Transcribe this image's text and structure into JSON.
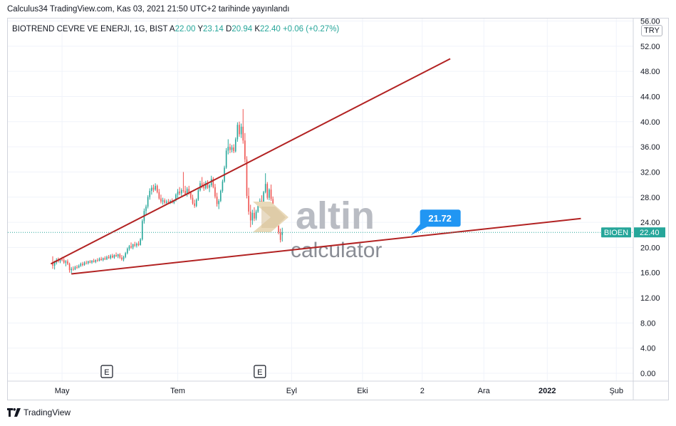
{
  "publish_line": "Calculus34 TradingView.com, Kas 03, 2021 21:50 UTC+2 tarihinde yayınlandı",
  "legend": {
    "symbol": "BIOTREND CEVRE VE ENERJI, 1G, BIST",
    "open_label": "A",
    "open": "22.00",
    "high_label": "Y",
    "high": "23.14",
    "low_label": "D",
    "low": "20.94",
    "close_label": "K",
    "close": "22.40",
    "change": "+0.06 (+0.27%)"
  },
  "currency": "TRY",
  "footer_brand": "TradingView",
  "watermark": {
    "word": "altin",
    "tagline": "calculator"
  },
  "colors": {
    "up": "#26a69a",
    "down": "#ef5350",
    "trendline": "#b22222",
    "label": "#2196f3",
    "price_tag": "#26a69a"
  },
  "chart_data": {
    "type": "candlestick",
    "y_axis": {
      "min": 0,
      "max": 56,
      "ticks": [
        "0.00",
        "4.00",
        "8.00",
        "12.00",
        "16.00",
        "20.00",
        "24.00",
        "28.00",
        "32.00",
        "36.00",
        "40.00",
        "44.00",
        "48.00",
        "52.00",
        "56.00"
      ]
    },
    "x_axis": {
      "ticks": [
        "May",
        "Tem",
        "Eyl",
        "Eki",
        "2",
        "Ara",
        "2022",
        "Şub"
      ],
      "tick_index": [
        5,
        67,
        128,
        166,
        198,
        231,
        265,
        302
      ]
    },
    "earnings_markers": [
      {
        "label": "E",
        "index": 29
      },
      {
        "label": "E",
        "index": 111
      }
    ],
    "price_line": {
      "symbol": "BIOEN",
      "value": 22.4
    },
    "callout": {
      "value": "21.72",
      "index": 193
    },
    "trendlines": [
      {
        "from": {
          "index": -1,
          "price": 17.4
        },
        "to": {
          "index": 213,
          "price": 50.0
        }
      },
      {
        "from": {
          "index": 10,
          "price": 15.8
        },
        "to": {
          "index": 283,
          "price": 24.6
        }
      }
    ],
    "series": [
      {
        "o": 17.6,
        "h": 18.6,
        "l": 16.6,
        "c": 17.1
      },
      {
        "o": 17.1,
        "h": 17.9,
        "l": 16.5,
        "c": 17.6
      },
      {
        "o": 17.6,
        "h": 18.3,
        "l": 17.3,
        "c": 18.0
      },
      {
        "o": 18.0,
        "h": 18.4,
        "l": 17.6,
        "c": 17.8
      },
      {
        "o": 17.8,
        "h": 18.2,
        "l": 17.5,
        "c": 18.1
      },
      {
        "o": 18.1,
        "h": 18.5,
        "l": 17.8,
        "c": 18.0
      },
      {
        "o": 18.0,
        "h": 18.3,
        "l": 17.4,
        "c": 17.6
      },
      {
        "o": 17.6,
        "h": 18.0,
        "l": 17.0,
        "c": 17.8
      },
      {
        "o": 17.8,
        "h": 18.1,
        "l": 17.2,
        "c": 17.4
      },
      {
        "o": 17.4,
        "h": 17.6,
        "l": 16.0,
        "c": 16.4
      },
      {
        "o": 16.4,
        "h": 16.9,
        "l": 15.9,
        "c": 16.6
      },
      {
        "o": 16.6,
        "h": 17.0,
        "l": 16.3,
        "c": 16.5
      },
      {
        "o": 16.5,
        "h": 17.1,
        "l": 16.4,
        "c": 16.9
      },
      {
        "o": 16.9,
        "h": 17.2,
        "l": 16.6,
        "c": 16.8
      },
      {
        "o": 16.8,
        "h": 17.3,
        "l": 16.7,
        "c": 17.1
      },
      {
        "o": 17.1,
        "h": 17.6,
        "l": 16.9,
        "c": 17.4
      },
      {
        "o": 17.4,
        "h": 17.7,
        "l": 17.0,
        "c": 17.2
      },
      {
        "o": 17.2,
        "h": 17.8,
        "l": 17.1,
        "c": 17.6
      },
      {
        "o": 17.6,
        "h": 17.9,
        "l": 17.3,
        "c": 17.5
      },
      {
        "o": 17.5,
        "h": 17.9,
        "l": 17.3,
        "c": 17.8
      },
      {
        "o": 17.8,
        "h": 18.0,
        "l": 17.5,
        "c": 17.6
      },
      {
        "o": 17.6,
        "h": 18.0,
        "l": 17.4,
        "c": 17.9
      },
      {
        "o": 17.9,
        "h": 18.2,
        "l": 17.6,
        "c": 17.7
      },
      {
        "o": 17.7,
        "h": 18.1,
        "l": 17.5,
        "c": 18.0
      },
      {
        "o": 18.0,
        "h": 18.3,
        "l": 17.7,
        "c": 17.9
      },
      {
        "o": 17.9,
        "h": 18.4,
        "l": 17.8,
        "c": 18.2
      },
      {
        "o": 18.2,
        "h": 18.5,
        "l": 17.9,
        "c": 18.0
      },
      {
        "o": 18.0,
        "h": 18.4,
        "l": 17.8,
        "c": 18.3
      },
      {
        "o": 18.3,
        "h": 18.6,
        "l": 18.0,
        "c": 18.1
      },
      {
        "o": 18.1,
        "h": 18.7,
        "l": 18.0,
        "c": 18.5
      },
      {
        "o": 18.5,
        "h": 18.8,
        "l": 18.2,
        "c": 18.3
      },
      {
        "o": 18.3,
        "h": 18.9,
        "l": 18.1,
        "c": 18.7
      },
      {
        "o": 18.7,
        "h": 19.0,
        "l": 18.3,
        "c": 18.4
      },
      {
        "o": 18.4,
        "h": 18.9,
        "l": 18.2,
        "c": 18.8
      },
      {
        "o": 18.8,
        "h": 19.2,
        "l": 18.5,
        "c": 18.6
      },
      {
        "o": 18.6,
        "h": 19.0,
        "l": 18.3,
        "c": 18.9
      },
      {
        "o": 18.9,
        "h": 19.1,
        "l": 18.2,
        "c": 18.4
      },
      {
        "o": 18.4,
        "h": 18.8,
        "l": 17.9,
        "c": 18.1
      },
      {
        "o": 18.1,
        "h": 18.7,
        "l": 17.8,
        "c": 18.5
      },
      {
        "o": 18.5,
        "h": 19.3,
        "l": 18.3,
        "c": 19.1
      },
      {
        "o": 19.1,
        "h": 20.0,
        "l": 18.9,
        "c": 19.8
      },
      {
        "o": 19.8,
        "h": 20.4,
        "l": 19.5,
        "c": 20.2
      },
      {
        "o": 20.2,
        "h": 20.8,
        "l": 19.8,
        "c": 20.0
      },
      {
        "o": 20.0,
        "h": 20.6,
        "l": 19.7,
        "c": 20.5
      },
      {
        "o": 20.5,
        "h": 20.9,
        "l": 20.1,
        "c": 20.3
      },
      {
        "o": 20.3,
        "h": 20.8,
        "l": 20.0,
        "c": 20.6
      },
      {
        "o": 20.6,
        "h": 21.0,
        "l": 20.2,
        "c": 20.4
      },
      {
        "o": 20.4,
        "h": 21.5,
        "l": 20.3,
        "c": 21.3
      },
      {
        "o": 21.3,
        "h": 24.5,
        "l": 21.1,
        "c": 24.2
      },
      {
        "o": 24.2,
        "h": 26.2,
        "l": 23.8,
        "c": 25.8
      },
      {
        "o": 25.8,
        "h": 26.8,
        "l": 25.2,
        "c": 26.5
      },
      {
        "o": 26.5,
        "h": 28.3,
        "l": 26.2,
        "c": 28.0
      },
      {
        "o": 28.0,
        "h": 29.4,
        "l": 27.6,
        "c": 29.0
      },
      {
        "o": 29.0,
        "h": 29.9,
        "l": 28.4,
        "c": 29.5
      },
      {
        "o": 29.5,
        "h": 30.0,
        "l": 28.8,
        "c": 29.2
      },
      {
        "o": 29.2,
        "h": 30.2,
        "l": 29.0,
        "c": 29.8
      },
      {
        "o": 29.8,
        "h": 30.0,
        "l": 28.6,
        "c": 28.8
      },
      {
        "o": 28.8,
        "h": 29.3,
        "l": 27.6,
        "c": 27.8
      },
      {
        "o": 27.8,
        "h": 28.4,
        "l": 27.0,
        "c": 27.3
      },
      {
        "o": 27.3,
        "h": 27.9,
        "l": 26.8,
        "c": 27.5
      },
      {
        "o": 27.5,
        "h": 27.8,
        "l": 26.9,
        "c": 27.1
      },
      {
        "o": 27.1,
        "h": 27.6,
        "l": 26.8,
        "c": 27.3
      },
      {
        "o": 27.3,
        "h": 27.7,
        "l": 27.0,
        "c": 27.2
      },
      {
        "o": 27.2,
        "h": 27.6,
        "l": 26.9,
        "c": 27.4
      },
      {
        "o": 27.4,
        "h": 27.8,
        "l": 27.0,
        "c": 27.1
      },
      {
        "o": 27.1,
        "h": 27.6,
        "l": 26.9,
        "c": 27.5
      },
      {
        "o": 27.5,
        "h": 28.6,
        "l": 27.3,
        "c": 28.4
      },
      {
        "o": 28.4,
        "h": 29.3,
        "l": 27.8,
        "c": 28.9
      },
      {
        "o": 28.9,
        "h": 29.6,
        "l": 28.3,
        "c": 28.6
      },
      {
        "o": 28.6,
        "h": 29.4,
        "l": 28.2,
        "c": 29.1
      },
      {
        "o": 29.1,
        "h": 32.0,
        "l": 28.7,
        "c": 29.0
      },
      {
        "o": 29.0,
        "h": 29.8,
        "l": 28.2,
        "c": 28.5
      },
      {
        "o": 28.5,
        "h": 29.6,
        "l": 28.1,
        "c": 29.3
      },
      {
        "o": 29.3,
        "h": 29.8,
        "l": 28.4,
        "c": 28.7
      },
      {
        "o": 28.7,
        "h": 29.0,
        "l": 27.6,
        "c": 27.9
      },
      {
        "o": 27.9,
        "h": 28.4,
        "l": 26.8,
        "c": 27.0
      },
      {
        "o": 27.0,
        "h": 27.6,
        "l": 26.3,
        "c": 26.6
      },
      {
        "o": 26.6,
        "h": 27.8,
        "l": 26.4,
        "c": 27.6
      },
      {
        "o": 27.6,
        "h": 29.4,
        "l": 27.4,
        "c": 29.1
      },
      {
        "o": 29.1,
        "h": 30.6,
        "l": 28.9,
        "c": 30.2
      },
      {
        "o": 30.2,
        "h": 31.2,
        "l": 29.4,
        "c": 29.7
      },
      {
        "o": 29.7,
        "h": 30.4,
        "l": 29.0,
        "c": 29.4
      },
      {
        "o": 29.4,
        "h": 30.6,
        "l": 29.2,
        "c": 30.3
      },
      {
        "o": 30.3,
        "h": 30.7,
        "l": 29.3,
        "c": 29.5
      },
      {
        "o": 29.5,
        "h": 30.1,
        "l": 28.8,
        "c": 29.9
      },
      {
        "o": 29.9,
        "h": 31.4,
        "l": 29.6,
        "c": 30.9
      },
      {
        "o": 30.9,
        "h": 31.2,
        "l": 29.4,
        "c": 29.6
      },
      {
        "o": 29.6,
        "h": 30.1,
        "l": 27.8,
        "c": 28.1
      },
      {
        "o": 28.1,
        "h": 28.7,
        "l": 26.5,
        "c": 26.9
      },
      {
        "o": 26.9,
        "h": 27.7,
        "l": 26.1,
        "c": 27.4
      },
      {
        "o": 27.4,
        "h": 29.2,
        "l": 27.2,
        "c": 29.0
      },
      {
        "o": 29.0,
        "h": 30.8,
        "l": 28.7,
        "c": 30.5
      },
      {
        "o": 30.5,
        "h": 33.0,
        "l": 30.3,
        "c": 32.7
      },
      {
        "o": 32.7,
        "h": 35.8,
        "l": 32.5,
        "c": 35.4
      },
      {
        "o": 35.4,
        "h": 37.2,
        "l": 34.8,
        "c": 36.0
      },
      {
        "o": 36.0,
        "h": 36.5,
        "l": 35.0,
        "c": 35.5
      },
      {
        "o": 35.5,
        "h": 36.3,
        "l": 35.1,
        "c": 35.9
      },
      {
        "o": 35.9,
        "h": 36.4,
        "l": 35.0,
        "c": 35.3
      },
      {
        "o": 35.3,
        "h": 37.5,
        "l": 35.1,
        "c": 37.2
      },
      {
        "o": 37.2,
        "h": 39.9,
        "l": 36.8,
        "c": 39.5
      },
      {
        "o": 39.5,
        "h": 40.0,
        "l": 37.6,
        "c": 38.0
      },
      {
        "o": 38.0,
        "h": 39.7,
        "l": 37.4,
        "c": 39.2
      },
      {
        "o": 39.2,
        "h": 42.0,
        "l": 36.5,
        "c": 37.0
      },
      {
        "o": 37.0,
        "h": 38.2,
        "l": 33.5,
        "c": 34.0
      },
      {
        "o": 34.0,
        "h": 34.5,
        "l": 27.8,
        "c": 28.2
      },
      {
        "o": 28.2,
        "h": 29.5,
        "l": 25.2,
        "c": 25.7
      },
      {
        "o": 25.7,
        "h": 26.8,
        "l": 23.2,
        "c": 24.3
      },
      {
        "o": 24.3,
        "h": 26.0,
        "l": 23.6,
        "c": 25.5
      },
      {
        "o": 25.5,
        "h": 26.4,
        "l": 24.2,
        "c": 24.6
      },
      {
        "o": 24.6,
        "h": 26.0,
        "l": 24.3,
        "c": 25.7
      },
      {
        "o": 25.7,
        "h": 27.2,
        "l": 25.5,
        "c": 26.9
      },
      {
        "o": 26.9,
        "h": 27.8,
        "l": 26.3,
        "c": 27.4
      },
      {
        "o": 27.4,
        "h": 28.3,
        "l": 26.7,
        "c": 26.9
      },
      {
        "o": 26.9,
        "h": 29.0,
        "l": 26.8,
        "c": 28.8
      },
      {
        "o": 28.8,
        "h": 31.8,
        "l": 28.6,
        "c": 30.1
      },
      {
        "o": 30.1,
        "h": 30.4,
        "l": 27.6,
        "c": 27.9
      },
      {
        "o": 27.9,
        "h": 29.4,
        "l": 27.5,
        "c": 29.2
      },
      {
        "o": 29.2,
        "h": 30.0,
        "l": 27.4,
        "c": 27.7
      },
      {
        "o": 27.7,
        "h": 28.1,
        "l": 25.1,
        "c": 25.4
      },
      {
        "o": 25.4,
        "h": 26.2,
        "l": 24.3,
        "c": 25.9
      },
      {
        "o": 25.9,
        "h": 26.4,
        "l": 24.2,
        "c": 24.5
      },
      {
        "o": 24.5,
        "h": 24.9,
        "l": 22.1,
        "c": 22.4
      },
      {
        "o": 22.4,
        "h": 23.0,
        "l": 20.8,
        "c": 21.2
      },
      {
        "o": 22.0,
        "h": 23.14,
        "l": 20.94,
        "c": 22.4
      }
    ]
  }
}
